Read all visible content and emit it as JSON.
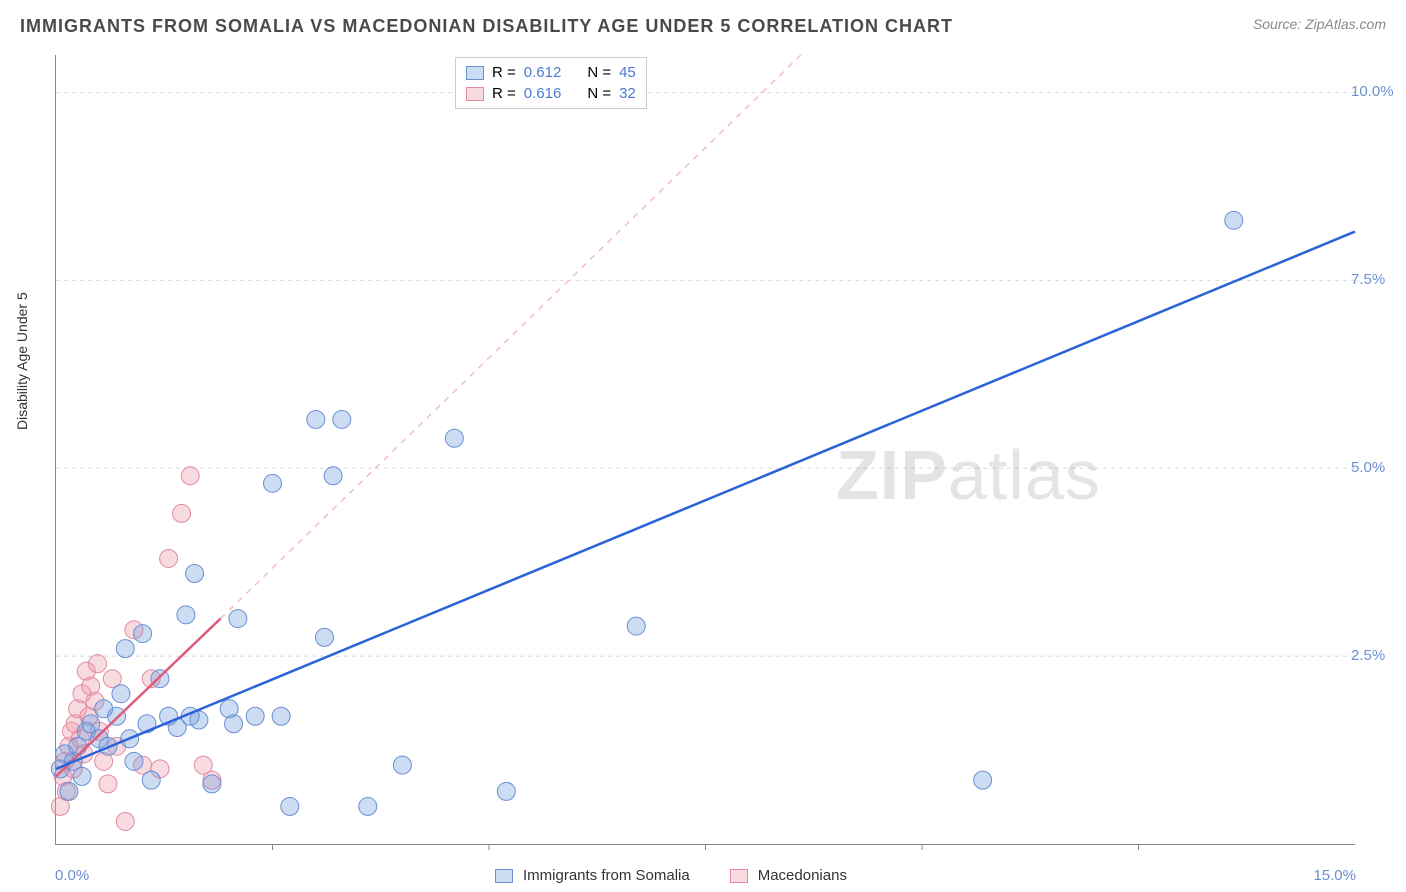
{
  "title": "IMMIGRANTS FROM SOMALIA VS MACEDONIAN DISABILITY AGE UNDER 5 CORRELATION CHART",
  "source": "Source: ZipAtlas.com",
  "y_axis_label": "Disability Age Under 5",
  "watermark_bold": "ZIP",
  "watermark_rest": "atlas",
  "plot": {
    "background_color": "#ffffff",
    "grid_color": "#d8d8d8",
    "axis_color": "#888888",
    "xlim": [
      0,
      15
    ],
    "ylim": [
      0,
      10.5
    ],
    "x_origin_label": "0.0%",
    "x_max_label": "15.0%",
    "y_ticks": [
      {
        "value": 2.5,
        "label": "2.5%"
      },
      {
        "value": 5.0,
        "label": "5.0%"
      },
      {
        "value": 7.5,
        "label": "7.5%"
      },
      {
        "value": 10.0,
        "label": "10.0%"
      }
    ],
    "x_tick_values": [
      2.5,
      5.0,
      7.5,
      10.0,
      12.5
    ],
    "y_tick_label_color": "#6b8fd4",
    "y_tick_fontsize": 15
  },
  "series": [
    {
      "name": "Immigrants from Somalia",
      "color_fill": "rgba(110,155,220,0.35)",
      "color_stroke": "#6b8fd4",
      "marker_radius": 9,
      "trend": {
        "x1": 0,
        "y1": 1.0,
        "x2": 15,
        "y2": 8.15,
        "stroke": "#2a62d8",
        "width": 2.5,
        "dash": "none",
        "ext_x2": 15,
        "ext_y2": 8.15
      },
      "R": "0.612",
      "N": "45",
      "points": [
        [
          0.05,
          1.0
        ],
        [
          0.1,
          1.2
        ],
        [
          0.2,
          1.1
        ],
        [
          0.25,
          1.3
        ],
        [
          0.3,
          0.9
        ],
        [
          0.35,
          1.5
        ],
        [
          0.4,
          1.6
        ],
        [
          0.5,
          1.4
        ],
        [
          0.55,
          1.8
        ],
        [
          0.6,
          1.3
        ],
        [
          0.7,
          1.7
        ],
        [
          0.75,
          2.0
        ],
        [
          0.8,
          2.6
        ],
        [
          0.85,
          1.4
        ],
        [
          0.9,
          1.1
        ],
        [
          1.0,
          2.8
        ],
        [
          1.05,
          1.6
        ],
        [
          1.1,
          0.85
        ],
        [
          1.2,
          2.2
        ],
        [
          1.3,
          1.7
        ],
        [
          1.4,
          1.55
        ],
        [
          1.5,
          3.05
        ],
        [
          1.55,
          1.7
        ],
        [
          1.6,
          3.6
        ],
        [
          1.65,
          1.65
        ],
        [
          1.8,
          0.8
        ],
        [
          2.0,
          1.8
        ],
        [
          2.05,
          1.6
        ],
        [
          2.1,
          3.0
        ],
        [
          2.3,
          1.7
        ],
        [
          2.5,
          4.8
        ],
        [
          2.6,
          1.7
        ],
        [
          2.7,
          0.5
        ],
        [
          3.0,
          5.65
        ],
        [
          3.1,
          2.75
        ],
        [
          3.2,
          4.9
        ],
        [
          3.3,
          5.65
        ],
        [
          3.6,
          0.5
        ],
        [
          4.0,
          1.05
        ],
        [
          4.6,
          5.4
        ],
        [
          5.2,
          0.7
        ],
        [
          6.7,
          2.9
        ],
        [
          10.7,
          0.85
        ],
        [
          13.6,
          8.3
        ],
        [
          0.15,
          0.7
        ]
      ]
    },
    {
      "name": "Macedonians",
      "color_fill": "rgba(235,150,170,0.35)",
      "color_stroke": "#e48aa0",
      "marker_radius": 9,
      "trend": {
        "x1": 0,
        "y1": 0.9,
        "x2": 1.9,
        "y2": 3.0,
        "stroke": "#e05a7a",
        "width": 2.5,
        "dash": "none",
        "ext_x1": 1.9,
        "ext_y1": 3.0,
        "ext_x2": 8.6,
        "ext_y2": 10.5,
        "ext_dash": "6,6",
        "ext_stroke": "#f0bcc8"
      },
      "R": "0.616",
      "N": "32",
      "points": [
        [
          0.05,
          0.5
        ],
        [
          0.08,
          0.9
        ],
        [
          0.1,
          1.1
        ],
        [
          0.12,
          0.7
        ],
        [
          0.15,
          1.3
        ],
        [
          0.18,
          1.5
        ],
        [
          0.2,
          1.0
        ],
        [
          0.22,
          1.6
        ],
        [
          0.25,
          1.8
        ],
        [
          0.28,
          1.4
        ],
        [
          0.3,
          2.0
        ],
        [
          0.32,
          1.2
        ],
        [
          0.35,
          2.3
        ],
        [
          0.38,
          1.7
        ],
        [
          0.4,
          2.1
        ],
        [
          0.45,
          1.9
        ],
        [
          0.48,
          2.4
        ],
        [
          0.5,
          1.5
        ],
        [
          0.55,
          1.1
        ],
        [
          0.6,
          0.8
        ],
        [
          0.65,
          2.2
        ],
        [
          0.7,
          1.3
        ],
        [
          0.8,
          0.3
        ],
        [
          0.9,
          2.85
        ],
        [
          1.0,
          1.05
        ],
        [
          1.1,
          2.2
        ],
        [
          1.2,
          1.0
        ],
        [
          1.3,
          3.8
        ],
        [
          1.45,
          4.4
        ],
        [
          1.55,
          4.9
        ],
        [
          1.7,
          1.05
        ],
        [
          1.8,
          0.85
        ]
      ]
    }
  ],
  "stats_legend": {
    "labels": {
      "R": "R =",
      "N": "N ="
    }
  },
  "bottom_legend": {
    "series1_label": "Immigrants from Somalia",
    "series2_label": "Macedonians"
  }
}
